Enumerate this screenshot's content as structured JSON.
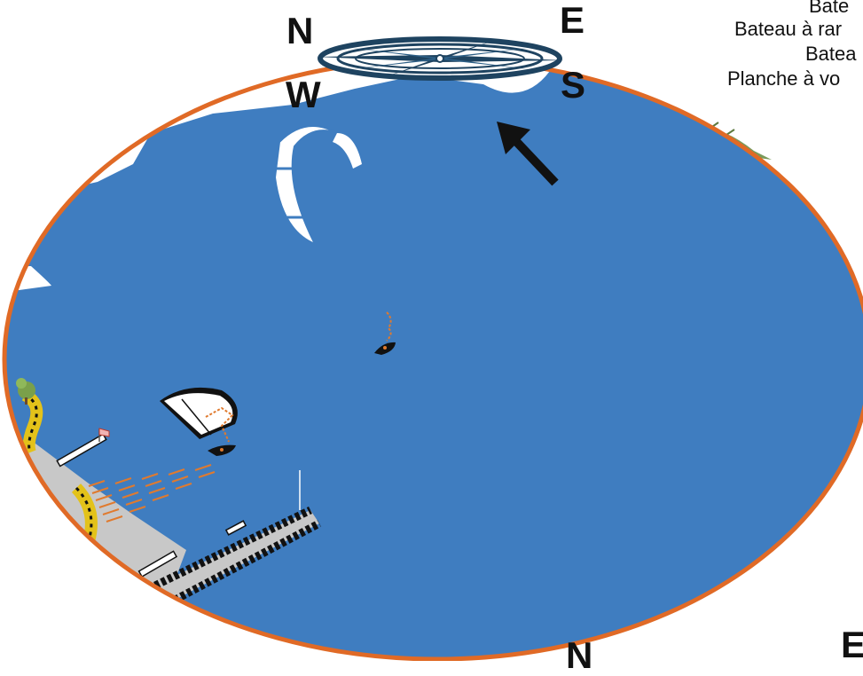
{
  "compass_top": {
    "north": "N",
    "east": "E",
    "west": "W",
    "south": "S"
  },
  "compass_bottom": {
    "north": "N",
    "east": "E"
  },
  "legend": [
    "Bate",
    "Bateau à rar",
    "Batea",
    "Planche à vo"
  ],
  "colors": {
    "water": "#3f7dc0",
    "shore_ring": "#e06a26",
    "compass": "#1e4360",
    "beach": "#c8c8c8",
    "buoy_yellow": "#e3c21a",
    "rider_orange": "#e07a2e"
  },
  "icons": [
    "compass-rose-icon",
    "wind-arrow-icon",
    "kite-icon",
    "kitesurfer-icon",
    "windsock-icon",
    "tree-icon",
    "grass-icon",
    "flagpole-icon"
  ]
}
